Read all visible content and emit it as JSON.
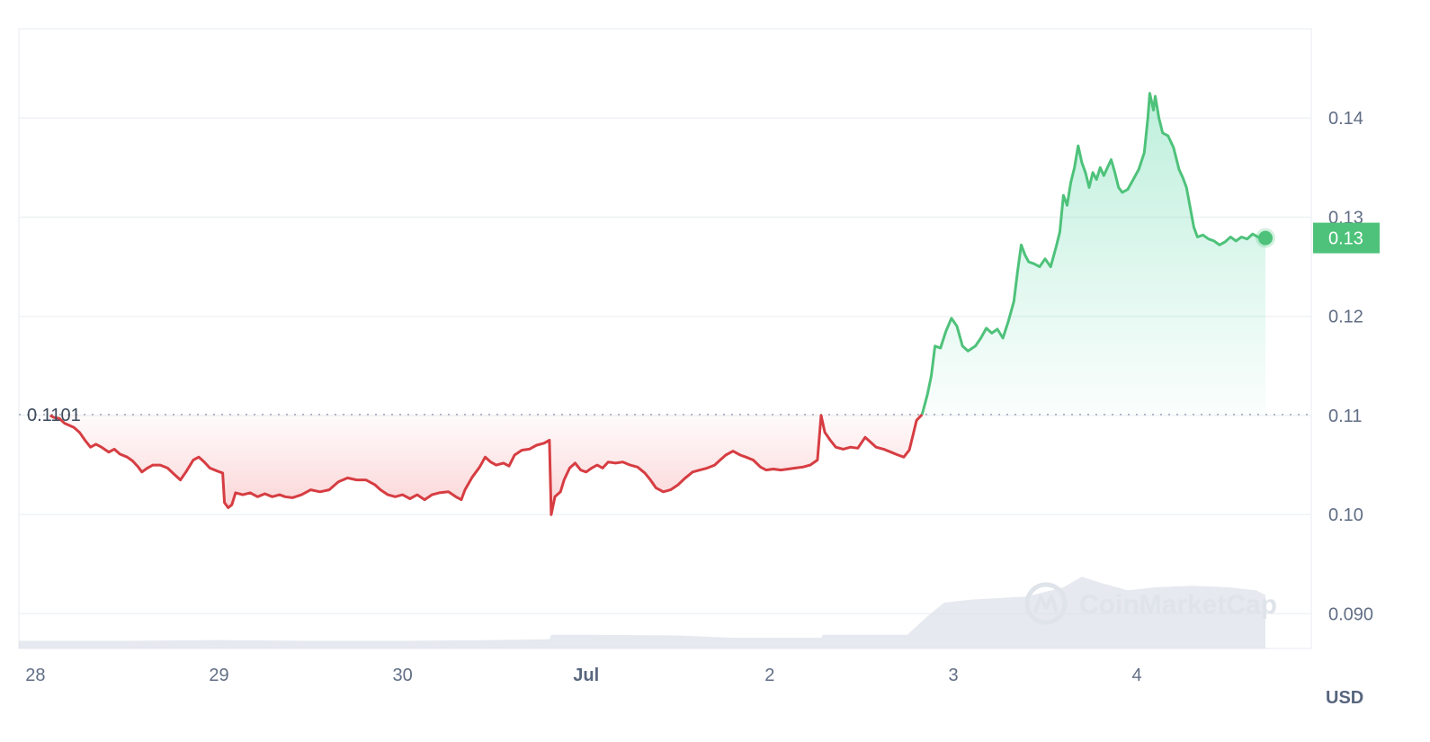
{
  "chart_data": {
    "type": "line",
    "currency": "USD",
    "reference_price": 0.1101,
    "reference_label": "0.1101",
    "current_price_label": "0.13",
    "ylim": [
      0.0865,
      0.149
    ],
    "xlim": [
      -0.09,
      6.95
    ],
    "y_ticks": [
      {
        "value": 0.14,
        "label": "0.14"
      },
      {
        "value": 0.13,
        "label": "0.13"
      },
      {
        "value": 0.12,
        "label": "0.12"
      },
      {
        "value": 0.11,
        "label": "0.11"
      },
      {
        "value": 0.1,
        "label": "0.10"
      },
      {
        "value": 0.09,
        "label": "0.090"
      }
    ],
    "x_ticks": [
      {
        "value": 0,
        "label": "28"
      },
      {
        "value": 1,
        "label": "29"
      },
      {
        "value": 2,
        "label": "30"
      },
      {
        "value": 3,
        "label": "Jul",
        "bold": true
      },
      {
        "value": 4,
        "label": "2"
      },
      {
        "value": 5,
        "label": "3"
      },
      {
        "value": 6,
        "label": "4"
      }
    ],
    "colors": {
      "up": "#16c784",
      "up_line": "#4ec27a",
      "down": "#d63d42",
      "grid": "#eff2f5",
      "volume": "#dde2ea",
      "reference": "#9aa4b3",
      "label_bg": "#4ec27a"
    },
    "series": [
      {
        "values": [
          [
            0.08,
            0.11
          ],
          [
            0.1,
            0.1098
          ],
          [
            0.13,
            0.1097
          ],
          [
            0.16,
            0.1092
          ],
          [
            0.21,
            0.1088
          ],
          [
            0.24,
            0.1083
          ],
          [
            0.27,
            0.1075
          ],
          [
            0.3,
            0.1068
          ],
          [
            0.33,
            0.1071
          ],
          [
            0.36,
            0.1068
          ],
          [
            0.4,
            0.1063
          ],
          [
            0.43,
            0.1066
          ],
          [
            0.46,
            0.1061
          ],
          [
            0.5,
            0.1058
          ],
          [
            0.53,
            0.1054
          ],
          [
            0.56,
            0.1048
          ],
          [
            0.58,
            0.1043
          ],
          [
            0.61,
            0.1047
          ],
          [
            0.64,
            0.105
          ],
          [
            0.68,
            0.105
          ],
          [
            0.72,
            0.1047
          ],
          [
            0.76,
            0.104
          ],
          [
            0.79,
            0.1035
          ],
          [
            0.82,
            0.1043
          ],
          [
            0.86,
            0.1055
          ],
          [
            0.89,
            0.1058
          ],
          [
            0.92,
            0.1053
          ],
          [
            0.95,
            0.1047
          ],
          [
            0.99,
            0.1044
          ],
          [
            1.02,
            0.1042
          ],
          [
            1.03,
            0.1012
          ],
          [
            1.05,
            0.1007
          ],
          [
            1.07,
            0.101
          ],
          [
            1.09,
            0.1022
          ],
          [
            1.13,
            0.102
          ],
          [
            1.17,
            0.1022
          ],
          [
            1.21,
            0.1018
          ],
          [
            1.25,
            0.1021
          ],
          [
            1.29,
            0.1018
          ],
          [
            1.33,
            0.102
          ],
          [
            1.36,
            0.1018
          ],
          [
            1.4,
            0.1017
          ],
          [
            1.45,
            0.102
          ],
          [
            1.5,
            0.1025
          ],
          [
            1.55,
            0.1023
          ],
          [
            1.6,
            0.1025
          ],
          [
            1.65,
            0.1033
          ],
          [
            1.7,
            0.1037
          ],
          [
            1.75,
            0.1035
          ],
          [
            1.8,
            0.1035
          ],
          [
            1.85,
            0.103
          ],
          [
            1.88,
            0.1025
          ],
          [
            1.92,
            0.102
          ],
          [
            1.96,
            0.1018
          ],
          [
            2.0,
            0.102
          ],
          [
            2.04,
            0.1016
          ],
          [
            2.08,
            0.102
          ],
          [
            2.12,
            0.1015
          ],
          [
            2.16,
            0.102
          ],
          [
            2.2,
            0.1022
          ],
          [
            2.25,
            0.1023
          ],
          [
            2.29,
            0.1018
          ],
          [
            2.32,
            0.1015
          ],
          [
            2.34,
            0.1025
          ],
          [
            2.38,
            0.1038
          ],
          [
            2.42,
            0.1048
          ],
          [
            2.45,
            0.1058
          ],
          [
            2.48,
            0.1053
          ],
          [
            2.51,
            0.105
          ],
          [
            2.55,
            0.1052
          ],
          [
            2.58,
            0.1049
          ],
          [
            2.61,
            0.106
          ],
          [
            2.65,
            0.1065
          ],
          [
            2.69,
            0.1066
          ],
          [
            2.73,
            0.107
          ],
          [
            2.77,
            0.1072
          ],
          [
            2.8,
            0.1075
          ],
          [
            2.81,
            0.1
          ],
          [
            2.83,
            0.1018
          ],
          [
            2.86,
            0.1023
          ],
          [
            2.88,
            0.1035
          ],
          [
            2.91,
            0.1047
          ],
          [
            2.94,
            0.1052
          ],
          [
            2.97,
            0.1045
          ],
          [
            3.0,
            0.1043
          ],
          [
            3.03,
            0.1047
          ],
          [
            3.06,
            0.105
          ],
          [
            3.09,
            0.1047
          ],
          [
            3.12,
            0.1053
          ],
          [
            3.16,
            0.1052
          ],
          [
            3.2,
            0.1053
          ],
          [
            3.24,
            0.105
          ],
          [
            3.28,
            0.1048
          ],
          [
            3.32,
            0.1042
          ],
          [
            3.35,
            0.1035
          ],
          [
            3.38,
            0.1027
          ],
          [
            3.42,
            0.1023
          ],
          [
            3.46,
            0.1025
          ],
          [
            3.5,
            0.103
          ],
          [
            3.54,
            0.1037
          ],
          [
            3.58,
            0.1043
          ],
          [
            3.62,
            0.1045
          ],
          [
            3.66,
            0.1047
          ],
          [
            3.7,
            0.105
          ],
          [
            3.73,
            0.1055
          ],
          [
            3.76,
            0.106
          ],
          [
            3.8,
            0.1064
          ],
          [
            3.84,
            0.106
          ],
          [
            3.87,
            0.1058
          ],
          [
            3.91,
            0.1055
          ],
          [
            3.95,
            0.1048
          ],
          [
            3.98,
            0.1045
          ],
          [
            4.02,
            0.1046
          ],
          [
            4.06,
            0.1045
          ],
          [
            4.1,
            0.1046
          ],
          [
            4.14,
            0.1047
          ],
          [
            4.18,
            0.1048
          ],
          [
            4.22,
            0.105
          ],
          [
            4.26,
            0.1055
          ],
          [
            4.28,
            0.11
          ],
          [
            4.3,
            0.1083
          ],
          [
            4.33,
            0.1075
          ],
          [
            4.36,
            0.1068
          ],
          [
            4.4,
            0.1066
          ],
          [
            4.44,
            0.1068
          ],
          [
            4.48,
            0.1067
          ],
          [
            4.52,
            0.1078
          ],
          [
            4.55,
            0.1073
          ],
          [
            4.58,
            0.1068
          ],
          [
            4.62,
            0.1066
          ],
          [
            4.66,
            0.1063
          ],
          [
            4.7,
            0.106
          ],
          [
            4.73,
            0.1058
          ],
          [
            4.76,
            0.1065
          ],
          [
            4.78,
            0.108
          ],
          [
            4.8,
            0.1095
          ],
          [
            4.83,
            0.1101
          ]
        ]
      },
      {
        "values": [
          [
            4.83,
            0.1101
          ],
          [
            4.86,
            0.1122
          ],
          [
            4.88,
            0.114
          ],
          [
            4.9,
            0.117
          ],
          [
            4.93,
            0.1168
          ],
          [
            4.96,
            0.1185
          ],
          [
            4.99,
            0.1198
          ],
          [
            5.02,
            0.119
          ],
          [
            5.05,
            0.117
          ],
          [
            5.08,
            0.1165
          ],
          [
            5.12,
            0.117
          ],
          [
            5.15,
            0.1178
          ],
          [
            5.18,
            0.1188
          ],
          [
            5.21,
            0.1183
          ],
          [
            5.24,
            0.1187
          ],
          [
            5.27,
            0.1178
          ],
          [
            5.3,
            0.1195
          ],
          [
            5.33,
            0.1215
          ],
          [
            5.35,
            0.1245
          ],
          [
            5.37,
            0.1272
          ],
          [
            5.39,
            0.1262
          ],
          [
            5.41,
            0.1255
          ],
          [
            5.44,
            0.1253
          ],
          [
            5.47,
            0.125
          ],
          [
            5.5,
            0.1258
          ],
          [
            5.53,
            0.125
          ],
          [
            5.56,
            0.127
          ],
          [
            5.58,
            0.1285
          ],
          [
            5.6,
            0.1322
          ],
          [
            5.62,
            0.1312
          ],
          [
            5.64,
            0.1335
          ],
          [
            5.66,
            0.135
          ],
          [
            5.68,
            0.1372
          ],
          [
            5.7,
            0.1355
          ],
          [
            5.72,
            0.1345
          ],
          [
            5.74,
            0.133
          ],
          [
            5.76,
            0.1345
          ],
          [
            5.78,
            0.1338
          ],
          [
            5.8,
            0.135
          ],
          [
            5.82,
            0.1342
          ],
          [
            5.84,
            0.135
          ],
          [
            5.86,
            0.1358
          ],
          [
            5.88,
            0.1345
          ],
          [
            5.9,
            0.133
          ],
          [
            5.92,
            0.1325
          ],
          [
            5.95,
            0.1328
          ],
          [
            5.98,
            0.1338
          ],
          [
            6.01,
            0.1348
          ],
          [
            6.04,
            0.1365
          ],
          [
            6.06,
            0.14
          ],
          [
            6.07,
            0.1425
          ],
          [
            6.09,
            0.1408
          ],
          [
            6.1,
            0.1422
          ],
          [
            6.12,
            0.14
          ],
          [
            6.14,
            0.1385
          ],
          [
            6.17,
            0.1382
          ],
          [
            6.2,
            0.137
          ],
          [
            6.23,
            0.1348
          ],
          [
            6.25,
            0.134
          ],
          [
            6.27,
            0.133
          ],
          [
            6.29,
            0.131
          ],
          [
            6.31,
            0.129
          ],
          [
            6.33,
            0.128
          ],
          [
            6.36,
            0.1282
          ],
          [
            6.39,
            0.1278
          ],
          [
            6.42,
            0.1276
          ],
          [
            6.45,
            0.1272
          ],
          [
            6.48,
            0.1275
          ],
          [
            6.51,
            0.128
          ],
          [
            6.54,
            0.1276
          ],
          [
            6.57,
            0.128
          ],
          [
            6.6,
            0.1278
          ],
          [
            6.63,
            0.1283
          ],
          [
            6.66,
            0.128
          ],
          [
            6.7,
            0.1279
          ]
        ]
      }
    ],
    "volume": [
      [
        -0.09,
        0.05
      ],
      [
        0.5,
        0.05
      ],
      [
        1.0,
        0.055
      ],
      [
        1.5,
        0.05
      ],
      [
        2.0,
        0.05
      ],
      [
        2.5,
        0.055
      ],
      [
        2.8,
        0.06
      ],
      [
        2.81,
        0.09
      ],
      [
        3.0,
        0.09
      ],
      [
        3.5,
        0.085
      ],
      [
        3.8,
        0.07
      ],
      [
        4.0,
        0.07
      ],
      [
        4.28,
        0.07
      ],
      [
        4.29,
        0.09
      ],
      [
        4.75,
        0.09
      ],
      [
        4.85,
        0.2
      ],
      [
        4.95,
        0.3
      ],
      [
        5.1,
        0.32
      ],
      [
        5.4,
        0.34
      ],
      [
        5.6,
        0.4
      ],
      [
        5.7,
        0.47
      ],
      [
        5.8,
        0.43
      ],
      [
        5.95,
        0.38
      ],
      [
        6.1,
        0.4
      ],
      [
        6.3,
        0.41
      ],
      [
        6.5,
        0.4
      ],
      [
        6.65,
        0.38
      ],
      [
        6.7,
        0.35
      ]
    ],
    "watermark": "CoinMarketCap"
  }
}
